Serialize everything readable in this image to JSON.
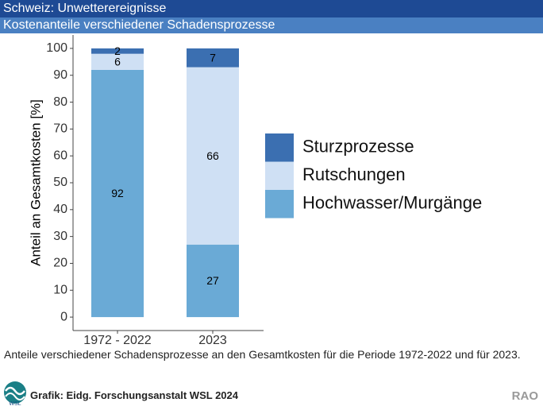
{
  "header": {
    "title": "Schweiz: Unwetterereignisse",
    "subtitle": "Kostenanteile verschiedener Schadensprozesse"
  },
  "chart_data": {
    "type": "stacked_bar",
    "y_label": "Anteil an Gesamtkosten [%]",
    "categories": [
      "1972 - 2022",
      "2023"
    ],
    "series": [
      {
        "name": "Hochwasser/Murgänge",
        "color": "#6aaad6",
        "values": [
          92,
          27
        ]
      },
      {
        "name": "Rutschungen",
        "color": "#cfe0f4",
        "values": [
          6,
          66
        ]
      },
      {
        "name": "Sturzprozesse",
        "color": "#3b6fb1",
        "values": [
          2,
          7
        ]
      }
    ],
    "ylim": [
      -5,
      105
    ],
    "yticks": [
      0,
      10,
      20,
      30,
      40,
      50,
      60,
      70,
      80,
      90,
      100
    ],
    "legend": "right"
  },
  "caption": "Anteile verschiedener Schadensprozesse an den Gesamtkosten für die Periode 1972-2022 und für 2023.",
  "footer": {
    "logo": "WSL",
    "credit": "Grafik: Eidg. Forschungsanstalt WSL 2024",
    "code": "RAO"
  }
}
